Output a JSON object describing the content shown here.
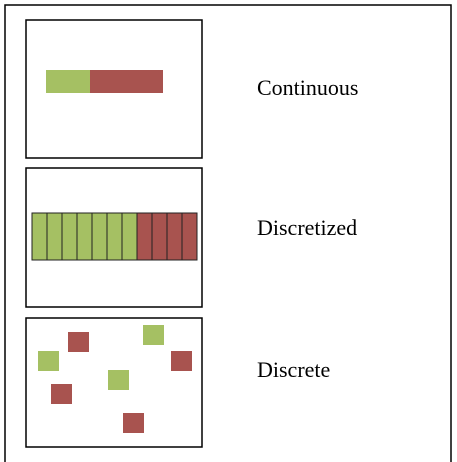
{
  "panels": [
    {
      "label": "Continuous"
    },
    {
      "label": "Discretized"
    },
    {
      "label": "Discrete"
    }
  ]
}
